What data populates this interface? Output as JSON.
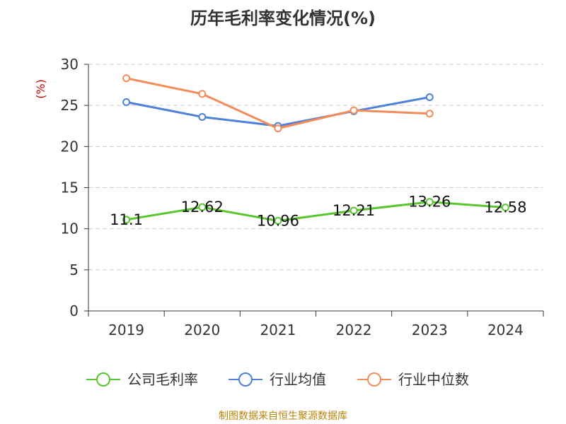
{
  "colors": {
    "axis": "#333333",
    "grid": "#cccccc",
    "unit": "#cc0000",
    "source": "#b8860b"
  },
  "chart_data": {
    "type": "line",
    "title": "历年毛利率变化情况(%)",
    "ylabel": "(%)",
    "xlabel": "",
    "categories": [
      "2019",
      "2020",
      "2021",
      "2022",
      "2023",
      "2024"
    ],
    "ylim": [
      0,
      30
    ],
    "yticks": [
      0,
      5,
      10,
      15,
      20,
      25,
      30
    ],
    "grid": true,
    "legend_position": "bottom",
    "series": [
      {
        "name": "公司毛利率",
        "color": "#5ac62d",
        "values": [
          11.1,
          12.62,
          10.96,
          12.21,
          13.26,
          12.58
        ],
        "labels": [
          "11.1",
          "12.62",
          "10.96",
          "12.21",
          "13.26",
          "12.58"
        ]
      },
      {
        "name": "行业均值",
        "color": "#4f81d8",
        "values": [
          25.4,
          23.6,
          22.5,
          24.3,
          26.0,
          null
        ]
      },
      {
        "name": "行业中位数",
        "color": "#f58b5a",
        "values": [
          28.3,
          26.4,
          22.2,
          24.4,
          24.0,
          null
        ]
      }
    ]
  },
  "source_text": "制图数据来自恒生聚源数据库"
}
